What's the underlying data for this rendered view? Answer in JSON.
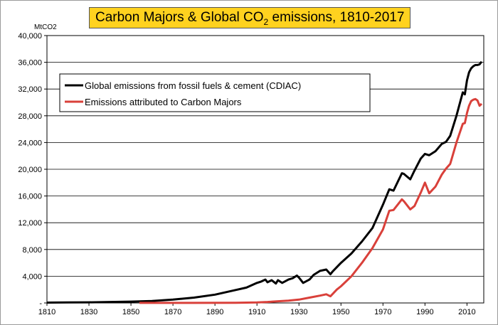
{
  "chart_data": {
    "type": "line",
    "title_parts": {
      "before": "Carbon Majors & Global CO",
      "sub": "2",
      "after": " emissions, 1810-2017"
    },
    "ylabel": "MtCO2",
    "xlim": [
      1810,
      2018
    ],
    "ylim": [
      0,
      40000
    ],
    "x_ticks": [
      1810,
      1830,
      1850,
      1870,
      1890,
      1910,
      1930,
      1950,
      1970,
      1990,
      2010
    ],
    "y_ticks": [
      {
        "value": 0,
        "label": "-"
      },
      {
        "value": 4000,
        "label": "4,000"
      },
      {
        "value": 8000,
        "label": "8,000"
      },
      {
        "value": 12000,
        "label": "12,000"
      },
      {
        "value": 16000,
        "label": "16,000"
      },
      {
        "value": 20000,
        "label": "20,000"
      },
      {
        "value": 24000,
        "label": "24,000"
      },
      {
        "value": 28000,
        "label": "28,000"
      },
      {
        "value": 32000,
        "label": "32,000"
      },
      {
        "value": 36000,
        "label": "36,000"
      },
      {
        "value": 40000,
        "label": "40,000"
      }
    ],
    "grid": "horizontal",
    "legend_position": "top-left",
    "series": [
      {
        "name": "Global emissions from fossil fuels & cement (CDIAC)",
        "color": "#000000",
        "points": [
          [
            1810,
            50
          ],
          [
            1820,
            80
          ],
          [
            1830,
            100
          ],
          [
            1840,
            150
          ],
          [
            1850,
            200
          ],
          [
            1860,
            300
          ],
          [
            1870,
            500
          ],
          [
            1880,
            800
          ],
          [
            1890,
            1250
          ],
          [
            1900,
            1950
          ],
          [
            1905,
            2300
          ],
          [
            1910,
            3000
          ],
          [
            1912,
            3200
          ],
          [
            1914,
            3500
          ],
          [
            1915,
            3100
          ],
          [
            1917,
            3400
          ],
          [
            1919,
            2900
          ],
          [
            1920,
            3400
          ],
          [
            1922,
            3000
          ],
          [
            1925,
            3500
          ],
          [
            1927,
            3700
          ],
          [
            1929,
            4100
          ],
          [
            1930,
            3800
          ],
          [
            1932,
            3000
          ],
          [
            1935,
            3500
          ],
          [
            1937,
            4200
          ],
          [
            1940,
            4800
          ],
          [
            1943,
            5000
          ],
          [
            1945,
            4300
          ],
          [
            1946,
            4700
          ],
          [
            1950,
            6000
          ],
          [
            1955,
            7400
          ],
          [
            1960,
            9200
          ],
          [
            1965,
            11200
          ],
          [
            1970,
            14700
          ],
          [
            1973,
            17000
          ],
          [
            1975,
            16800
          ],
          [
            1979,
            19400
          ],
          [
            1980,
            19300
          ],
          [
            1983,
            18500
          ],
          [
            1985,
            19800
          ],
          [
            1988,
            21600
          ],
          [
            1990,
            22300
          ],
          [
            1992,
            22100
          ],
          [
            1995,
            22700
          ],
          [
            1998,
            23800
          ],
          [
            2000,
            24100
          ],
          [
            2002,
            25000
          ],
          [
            2005,
            28000
          ],
          [
            2008,
            31500
          ],
          [
            2009,
            31200
          ],
          [
            2010,
            33300
          ],
          [
            2011,
            34500
          ],
          [
            2012,
            35100
          ],
          [
            2013,
            35400
          ],
          [
            2014,
            35600
          ],
          [
            2015,
            35600
          ],
          [
            2016,
            35700
          ],
          [
            2017,
            36100
          ]
        ]
      },
      {
        "name": "Emissions attributed to Carbon Majors",
        "color": "#d9403a",
        "points": [
          [
            1854,
            10
          ],
          [
            1880,
            15
          ],
          [
            1900,
            30
          ],
          [
            1910,
            80
          ],
          [
            1915,
            150
          ],
          [
            1920,
            250
          ],
          [
            1925,
            350
          ],
          [
            1930,
            500
          ],
          [
            1935,
            800
          ],
          [
            1940,
            1100
          ],
          [
            1943,
            1300
          ],
          [
            1945,
            1000
          ],
          [
            1948,
            2000
          ],
          [
            1950,
            2500
          ],
          [
            1955,
            4000
          ],
          [
            1960,
            6000
          ],
          [
            1965,
            8200
          ],
          [
            1970,
            11000
          ],
          [
            1973,
            13800
          ],
          [
            1975,
            13900
          ],
          [
            1979,
            15500
          ],
          [
            1980,
            15200
          ],
          [
            1983,
            14000
          ],
          [
            1985,
            14500
          ],
          [
            1988,
            16500
          ],
          [
            1990,
            18000
          ],
          [
            1992,
            16400
          ],
          [
            1995,
            17400
          ],
          [
            1998,
            19200
          ],
          [
            2000,
            20100
          ],
          [
            2002,
            20800
          ],
          [
            2005,
            24000
          ],
          [
            2008,
            26800
          ],
          [
            2009,
            26900
          ],
          [
            2010,
            28400
          ],
          [
            2011,
            29500
          ],
          [
            2012,
            30200
          ],
          [
            2013,
            30400
          ],
          [
            2014,
            30500
          ],
          [
            2015,
            30300
          ],
          [
            2016,
            29500
          ],
          [
            2017,
            29800
          ]
        ]
      }
    ]
  }
}
